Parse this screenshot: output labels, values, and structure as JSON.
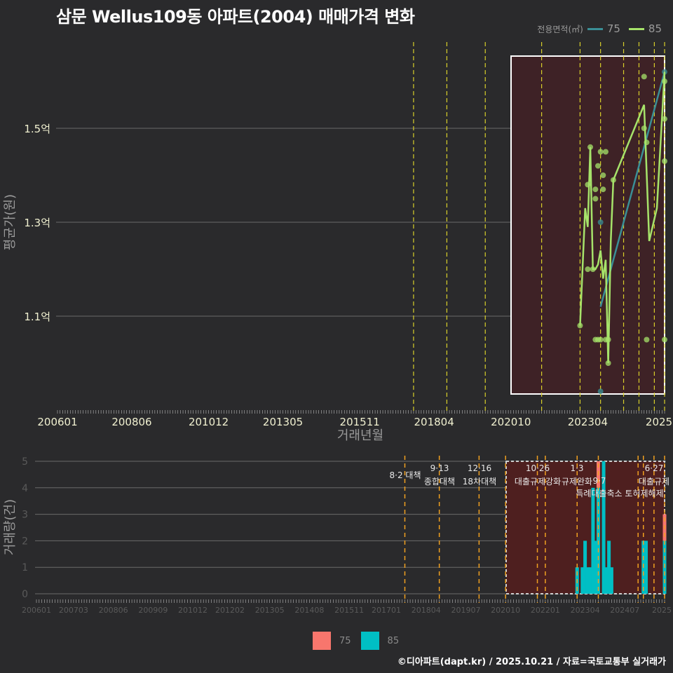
{
  "title": "삼문 Wellus109동 아파트(2004) 매매가격 변화",
  "legend_top": {
    "label": "전용면적(㎡)",
    "items": [
      {
        "label": "75",
        "color": "#3a8f96"
      },
      {
        "label": "85",
        "color": "#a6e36a"
      }
    ]
  },
  "bottom_legend": {
    "items": [
      {
        "label": "75",
        "color": "#f8766d"
      },
      {
        "label": "85",
        "color": "#00bfc4"
      }
    ]
  },
  "footer": "©디아파트(dapt.kr) / 2025.10.21 / 자료=국토교통부 실거래가",
  "chart_data": [
    {
      "type": "line",
      "title": "삼문 Wellus109동 아파트(2004) 매매가격 변화",
      "xlabel": "거래년월",
      "ylabel": "평균가(원)",
      "x_tick_labels": [
        "200601",
        "200806",
        "201012",
        "201305",
        "201511",
        "201804",
        "202010",
        "202304",
        "2025"
      ],
      "y_tick_labels": [
        "1.1억",
        "1.3억",
        "1.5억"
      ],
      "y_ticks": [
        1.1,
        1.3,
        1.5
      ],
      "ylim": [
        0.92,
        1.68
      ],
      "grid": true,
      "legend_position": "top-right",
      "highlight_box": {
        "x_start": "202009",
        "x_end": "202510",
        "y_start": 0.935,
        "y_end": 1.645
      },
      "policy_lines_x": [
        "201708",
        "201809",
        "201912",
        "202110",
        "202301",
        "202309",
        "202406",
        "202412",
        "202506",
        "202510"
      ],
      "series": [
        {
          "name": "75",
          "color": "#3a8f96",
          "points": [
            {
              "x": "202309",
              "y": 1.12
            },
            {
              "x": "202510",
              "y": 1.62
            }
          ],
          "scatter": [
            {
              "x": "202309",
              "y": 1.3
            },
            {
              "x": "202309",
              "y": 0.94
            },
            {
              "x": "202510",
              "y": 1.62
            }
          ]
        },
        {
          "name": "85",
          "color": "#a6e36a",
          "points": [
            {
              "x": "202301",
              "y": 1.08
            },
            {
              "x": "202303",
              "y": 1.33
            },
            {
              "x": "202304",
              "y": 1.29
            },
            {
              "x": "202305",
              "y": 1.46
            },
            {
              "x": "202306",
              "y": 1.2
            },
            {
              "x": "202307",
              "y": 1.2
            },
            {
              "x": "202308",
              "y": 1.21
            },
            {
              "x": "202309",
              "y": 1.24
            },
            {
              "x": "202310",
              "y": 1.18
            },
            {
              "x": "202311",
              "y": 1.22
            },
            {
              "x": "202312",
              "y": 1.0
            },
            {
              "x": "202401",
              "y": 1.26
            },
            {
              "x": "202402",
              "y": 1.39
            },
            {
              "x": "202502",
              "y": 1.55
            },
            {
              "x": "202504",
              "y": 1.26
            },
            {
              "x": "202507",
              "y": 1.33
            },
            {
              "x": "202510",
              "y": 1.62
            }
          ],
          "scatter": [
            {
              "x": "202301",
              "y": 1.08
            },
            {
              "x": "202304",
              "y": 1.38
            },
            {
              "x": "202305",
              "y": 1.46
            },
            {
              "x": "202304",
              "y": 1.2
            },
            {
              "x": "202306",
              "y": 1.2
            },
            {
              "x": "202307",
              "y": 1.37
            },
            {
              "x": "202307",
              "y": 1.35
            },
            {
              "x": "202308",
              "y": 1.42
            },
            {
              "x": "202309",
              "y": 1.45
            },
            {
              "x": "202311",
              "y": 1.45
            },
            {
              "x": "202310",
              "y": 1.4
            },
            {
              "x": "202310",
              "y": 1.37
            },
            {
              "x": "202307",
              "y": 1.05
            },
            {
              "x": "202308",
              "y": 1.05
            },
            {
              "x": "202309",
              "y": 1.05
            },
            {
              "x": "202311",
              "y": 1.05
            },
            {
              "x": "202312",
              "y": 1.05
            },
            {
              "x": "202312",
              "y": 1.0
            },
            {
              "x": "202402",
              "y": 1.39
            },
            {
              "x": "202502",
              "y": 1.61
            },
            {
              "x": "202502",
              "y": 1.5
            },
            {
              "x": "202503",
              "y": 1.47
            },
            {
              "x": "202510",
              "y": 1.6
            },
            {
              "x": "202510",
              "y": 1.52
            },
            {
              "x": "202510",
              "y": 1.43
            },
            {
              "x": "202503",
              "y": 1.05
            },
            {
              "x": "202510",
              "y": 1.05
            }
          ]
        }
      ]
    },
    {
      "type": "bar",
      "xlabel": "",
      "ylabel": "거래량(건)",
      "x_tick_labels": [
        "200601",
        "200703",
        "200806",
        "200909",
        "201012",
        "201202",
        "201305",
        "201408",
        "201511",
        "201701",
        "201804",
        "201907",
        "202010",
        "202201",
        "202304",
        "202407",
        "2025"
      ],
      "y_tick_labels": [
        "0",
        "1",
        "2",
        "3",
        "4",
        "5"
      ],
      "ylim": [
        0,
        5
      ],
      "stacked": true,
      "highlight_box": {
        "x_start": "202009",
        "x_end": "202510",
        "y_start": 0,
        "y_end": 5
      },
      "annotations": [
        {
          "x": "201708",
          "label": "8·2 대책"
        },
        {
          "x": "201809",
          "label": "9·13 종합대책"
        },
        {
          "x": "201912",
          "label": "12·16 18차대책"
        },
        {
          "x": "202110",
          "label": "10·26 대출규제강화"
        },
        {
          "x": "202301",
          "label": "1·3 규제완화"
        },
        {
          "x": "202309",
          "label": "9·7 특례대출축소"
        },
        {
          "x": "202506",
          "label": "6·27 대출규제"
        },
        {
          "x": "202510",
          "label": "토허제해제"
        }
      ],
      "categories": [
        "202301",
        "202302",
        "202303",
        "202304",
        "202305",
        "202306",
        "202307",
        "202308",
        "202309",
        "202310",
        "202311",
        "202312",
        "202401",
        "202402",
        "202502",
        "202503",
        "202510"
      ],
      "series": [
        {
          "name": "75",
          "color": "#f8766d",
          "values": [
            0,
            0,
            0,
            0,
            0,
            0,
            0,
            0,
            1,
            0,
            0,
            0,
            0,
            0,
            0,
            0,
            1
          ]
        },
        {
          "name": "85",
          "color": "#00bfc4",
          "values": [
            1,
            0,
            1,
            2,
            1,
            1,
            4,
            2,
            4,
            0,
            5,
            1,
            2,
            1,
            2,
            2,
            2
          ]
        }
      ]
    }
  ]
}
